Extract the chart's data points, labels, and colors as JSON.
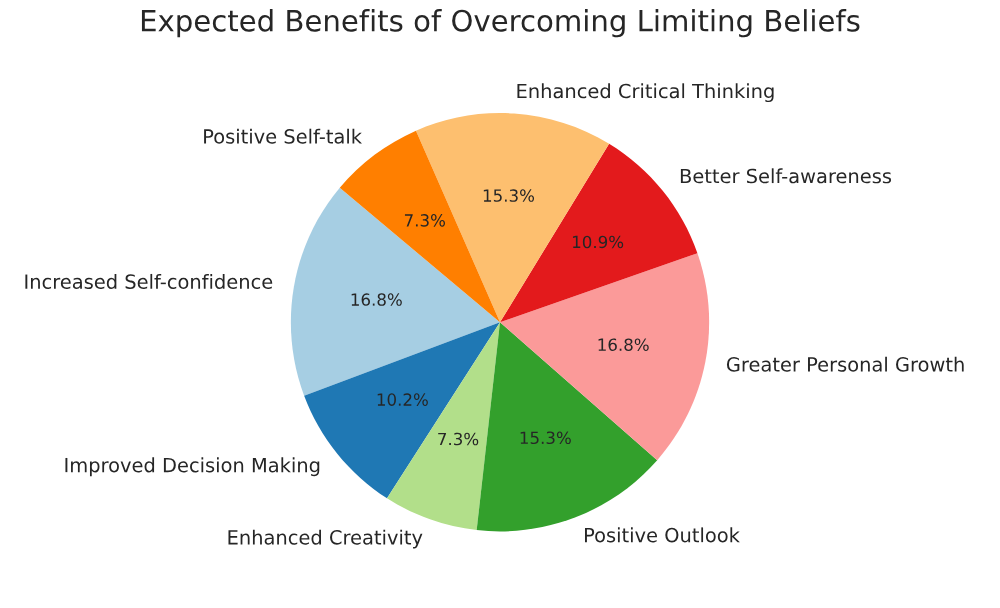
{
  "chart_data": {
    "type": "pie",
    "title": "Expected Benefits of Overcoming Limiting Beliefs",
    "categories": [
      "Increased Self-confidence",
      "Improved Decision Making",
      "Enhanced Creativity",
      "Positive Outlook",
      "Greater Personal Growth",
      "Better Self-awareness",
      "Enhanced Critical Thinking",
      "Positive Self-talk"
    ],
    "values": [
      16.8,
      10.2,
      7.3,
      15.3,
      16.8,
      10.9,
      15.3,
      7.3
    ],
    "value_labels": [
      "16.8%",
      "10.2%",
      "7.3%",
      "15.3%",
      "16.8%",
      "10.9%",
      "15.3%",
      "7.3%"
    ],
    "colors": [
      "#a6cee3",
      "#1f78b4",
      "#b2df8a",
      "#33a02c",
      "#fb9a99",
      "#e31a1c",
      "#fdbf6f",
      "#ff7f00"
    ]
  }
}
